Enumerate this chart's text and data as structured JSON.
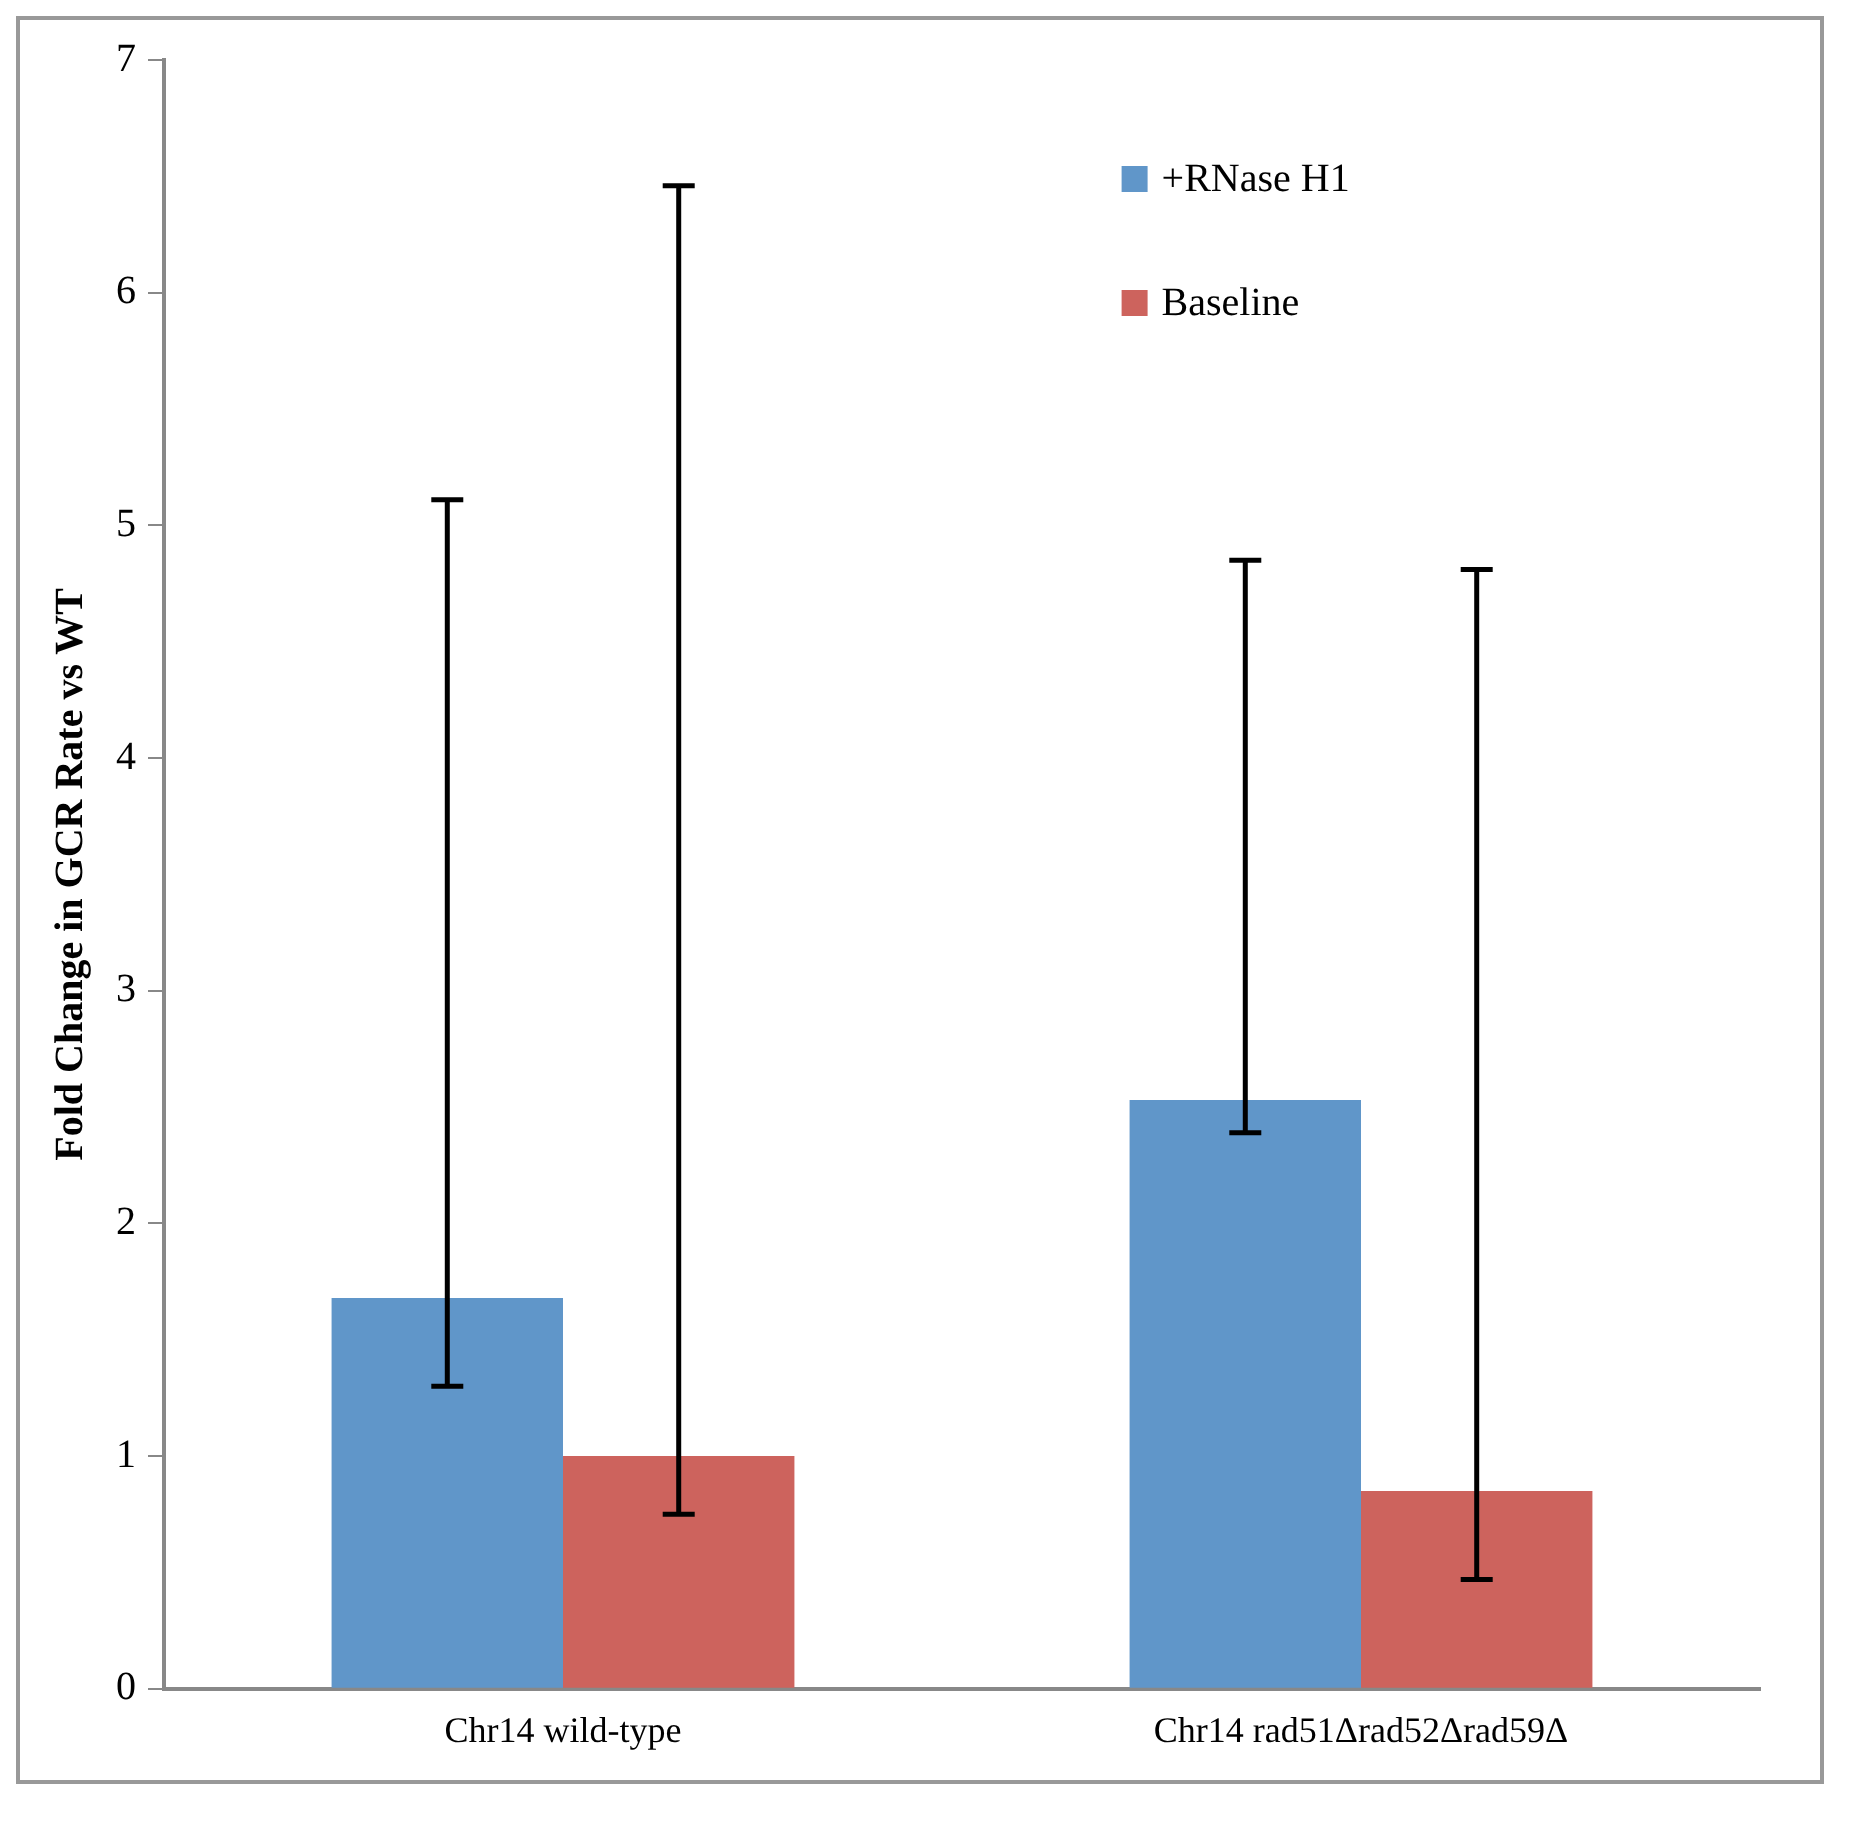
{
  "chart_data": {
    "type": "bar",
    "ylabel": "Fold Change in GCR Rate vs WT",
    "categories": [
      "Chr14 wild-type",
      "Chr14 rad51Δrad52Δrad59Δ"
    ],
    "series": [
      {
        "name": "+RNase H1",
        "color": "#6096c9",
        "values": [
          1.68,
          2.53
        ],
        "errors": [
          [
            1.3,
            5.11
          ],
          [
            2.39,
            4.85
          ]
        ]
      },
      {
        "name": "Baseline",
        "color": "#cd635d",
        "values": [
          1.0,
          0.85
        ],
        "errors": [
          [
            0.75,
            6.46
          ],
          [
            0.47,
            4.81
          ]
        ]
      }
    ],
    "ylim": [
      0,
      7
    ],
    "yticks": [
      0,
      1,
      2,
      3,
      4,
      5,
      6,
      7
    ],
    "grid": false,
    "legend": "top right"
  }
}
